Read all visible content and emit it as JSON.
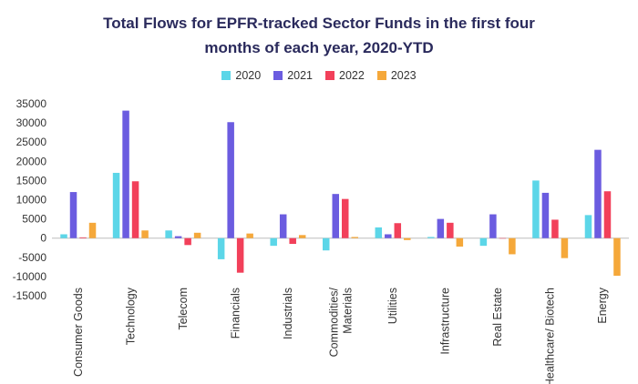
{
  "chart_data": {
    "type": "bar",
    "title_line1": "Total Flows for EPFR-tracked Sector Funds in the first four",
    "title_line2": "months of each year, 2020-YTD",
    "categories": [
      "Consumer Goods",
      "Technology",
      "Telecom",
      "Financials",
      "Industrials",
      "Commodities/ Materials",
      "Utilities",
      "Infrastructure",
      "Real Estate",
      "Healthcare/ Biotech",
      "Energy"
    ],
    "series": [
      {
        "name": "2020",
        "color": "#5cd6e8",
        "values": [
          1000,
          17000,
          2000,
          -5500,
          -2000,
          -3200,
          2800,
          300,
          -2000,
          15000,
          6000
        ]
      },
      {
        "name": "2021",
        "color": "#6b5ce0",
        "values": [
          12000,
          33200,
          500,
          30200,
          6200,
          11500,
          1000,
          5000,
          6200,
          11800,
          23000
        ]
      },
      {
        "name": "2022",
        "color": "#f2405a",
        "values": [
          200,
          14800,
          -1800,
          -9000,
          -1500,
          10200,
          3900,
          4000,
          0,
          4800,
          12200
        ]
      },
      {
        "name": "2023",
        "color": "#f5a83a",
        "values": [
          4000,
          2000,
          1400,
          1200,
          800,
          300,
          -500,
          -2200,
          -4200,
          -5200,
          -9800
        ]
      }
    ],
    "yticks": [
      35000,
      30000,
      25000,
      20000,
      15000,
      10000,
      5000,
      0,
      -5000,
      -10000,
      -15000
    ],
    "ylim": [
      -15000,
      35000
    ],
    "grid": false,
    "legend_position": "top-center"
  }
}
